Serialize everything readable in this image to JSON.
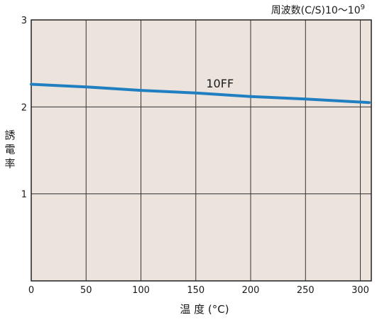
{
  "chart_data": {
    "type": "line",
    "frequency_note": "周波数(C/S)10～10",
    "frequency_exponent": "9",
    "ylabel": "誘電率",
    "xlabel": "温 度 (°C)",
    "xlim": [
      0,
      310
    ],
    "ylim": [
      0,
      3
    ],
    "xticks": [
      0,
      50,
      100,
      150,
      200,
      250,
      300
    ],
    "yticks": [
      1,
      2,
      3
    ],
    "grid": true,
    "background_color": "#ece3dd",
    "series": [
      {
        "name": "10FF",
        "color": "#1f7fc0",
        "x": [
          0,
          50,
          100,
          150,
          200,
          250,
          308
        ],
        "y": [
          2.26,
          2.23,
          2.19,
          2.16,
          2.12,
          2.09,
          2.05
        ]
      }
    ]
  }
}
